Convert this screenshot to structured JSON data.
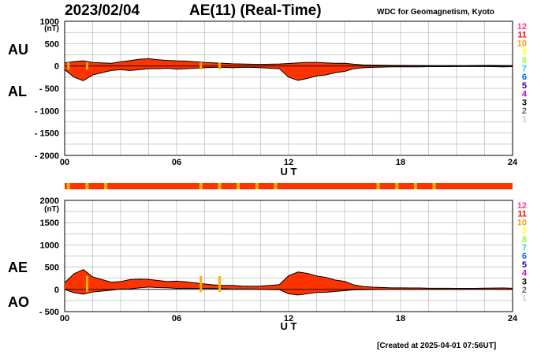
{
  "header": {
    "date": "2023/02/04",
    "title": "AE(11) (Real-Time)",
    "source": "WDC for Geomagnetism, Kyoto"
  },
  "footer": {
    "created": "[Created at 2025-04-01 07:56UT]"
  },
  "panel_labels": {
    "au": "AU",
    "al": "AL",
    "ae": "AE",
    "ao": "AO"
  },
  "station_scale": [
    "12",
    "11",
    "10",
    "9",
    "8",
    "7",
    "6",
    "5",
    "4",
    "3",
    "2",
    "1"
  ],
  "station_colors": [
    "#ff3399",
    "#ff0000",
    "#ff9900",
    "#ffff33",
    "#99ff33",
    "#33cccc",
    "#0066ff",
    "#330099",
    "#cc00cc",
    "#000000",
    "#666666",
    "#cccccc"
  ],
  "colors": {
    "fill": "#ff3300",
    "marker": "#ffb300",
    "grid": "#999999",
    "line": "#000000"
  },
  "chart_data": [
    {
      "type": "area",
      "panel": "AU/AL",
      "xlabel": "U T",
      "ylabel": "(nT)",
      "x_ticks": [
        "00",
        "06",
        "12",
        "18",
        "24"
      ],
      "xlim": [
        0,
        24
      ],
      "ylim": [
        -2000,
        1000
      ],
      "y_ticks": [
        "1000",
        "500",
        "0",
        "- 500",
        "- 1000",
        "- 1500",
        "- 2000"
      ],
      "grid": true,
      "x": [
        0,
        0.5,
        1,
        1.5,
        2,
        2.5,
        3,
        3.5,
        4,
        4.5,
        5,
        5.5,
        6,
        6.5,
        7,
        7.5,
        8,
        8.5,
        9,
        9.5,
        10,
        10.5,
        11,
        11.5,
        12,
        12.5,
        13,
        13.5,
        14,
        14.5,
        15,
        15.5,
        16,
        16.5,
        17,
        17.5,
        18,
        18.5,
        19,
        19.5,
        20,
        20.5,
        21,
        21.5,
        22,
        22.5,
        23,
        23.5,
        24
      ],
      "series": [
        {
          "name": "AU",
          "values": [
            70,
            100,
            115,
            80,
            70,
            60,
            95,
            120,
            150,
            165,
            140,
            125,
            115,
            110,
            95,
            80,
            70,
            60,
            50,
            45,
            40,
            35,
            40,
            45,
            55,
            70,
            80,
            80,
            70,
            60,
            60,
            40,
            25,
            20,
            18,
            15,
            15,
            12,
            12,
            10,
            10,
            10,
            10,
            10,
            12,
            15,
            15,
            12,
            10
          ]
        },
        {
          "name": "AL",
          "values": [
            -80,
            -250,
            -330,
            -200,
            -150,
            -100,
            -80,
            -100,
            -80,
            -60,
            -60,
            -50,
            -70,
            -60,
            -50,
            -40,
            -30,
            -30,
            -40,
            -30,
            -30,
            -40,
            -50,
            -60,
            -250,
            -320,
            -280,
            -220,
            -200,
            -150,
            -120,
            -60,
            -40,
            -30,
            -25,
            -20,
            -20,
            -20,
            -20,
            -15,
            -15,
            -15,
            -12,
            -12,
            -12,
            -12,
            -15,
            -20,
            -15
          ]
        }
      ]
    },
    {
      "type": "area",
      "panel": "AE/AO",
      "xlabel": "U T",
      "ylabel": "(nT)",
      "x_ticks": [
        "00",
        "06",
        "12",
        "18",
        "24"
      ],
      "xlim": [
        0,
        24
      ],
      "ylim": [
        -500,
        2000
      ],
      "y_ticks": [
        "2000",
        "1500",
        "1000",
        "500",
        "0",
        "- 500"
      ],
      "grid": true,
      "x": [
        0,
        0.5,
        1,
        1.5,
        2,
        2.5,
        3,
        3.5,
        4,
        4.5,
        5,
        5.5,
        6,
        6.5,
        7,
        7.5,
        8,
        8.5,
        9,
        9.5,
        10,
        10.5,
        11,
        11.5,
        12,
        12.5,
        13,
        13.5,
        14,
        14.5,
        15,
        15.5,
        16,
        16.5,
        17,
        17.5,
        18,
        18.5,
        19,
        19.5,
        20,
        20.5,
        21,
        21.5,
        22,
        22.5,
        23,
        23.5,
        24
      ],
      "series": [
        {
          "name": "AE",
          "values": [
            150,
            350,
            445,
            280,
            220,
            160,
            175,
            220,
            230,
            225,
            200,
            175,
            185,
            170,
            145,
            120,
            100,
            90,
            90,
            75,
            70,
            75,
            90,
            105,
            305,
            390,
            360,
            300,
            270,
            210,
            180,
            100,
            65,
            50,
            43,
            35,
            35,
            32,
            32,
            25,
            25,
            25,
            22,
            22,
            24,
            27,
            30,
            32,
            25
          ]
        },
        {
          "name": "AO",
          "values": [
            -5,
            -75,
            -108,
            -60,
            -40,
            -20,
            8,
            10,
            35,
            52,
            40,
            37,
            22,
            25,
            22,
            20,
            20,
            15,
            5,
            7,
            5,
            -2,
            -5,
            -7,
            -98,
            -125,
            -100,
            -70,
            -65,
            -45,
            -30,
            -10,
            -8,
            -5,
            -3,
            -2,
            -2,
            -4,
            -4,
            -2,
            -2,
            -2,
            -1,
            -1,
            0,
            1,
            0,
            -4,
            -2
          ]
        }
      ],
      "station_count_strip_markers": [
        0.2,
        1.2,
        2.2,
        7.3,
        8.3,
        9.3,
        10.3,
        11.3,
        16.8,
        17.8,
        18.8,
        19.8
      ]
    }
  ]
}
